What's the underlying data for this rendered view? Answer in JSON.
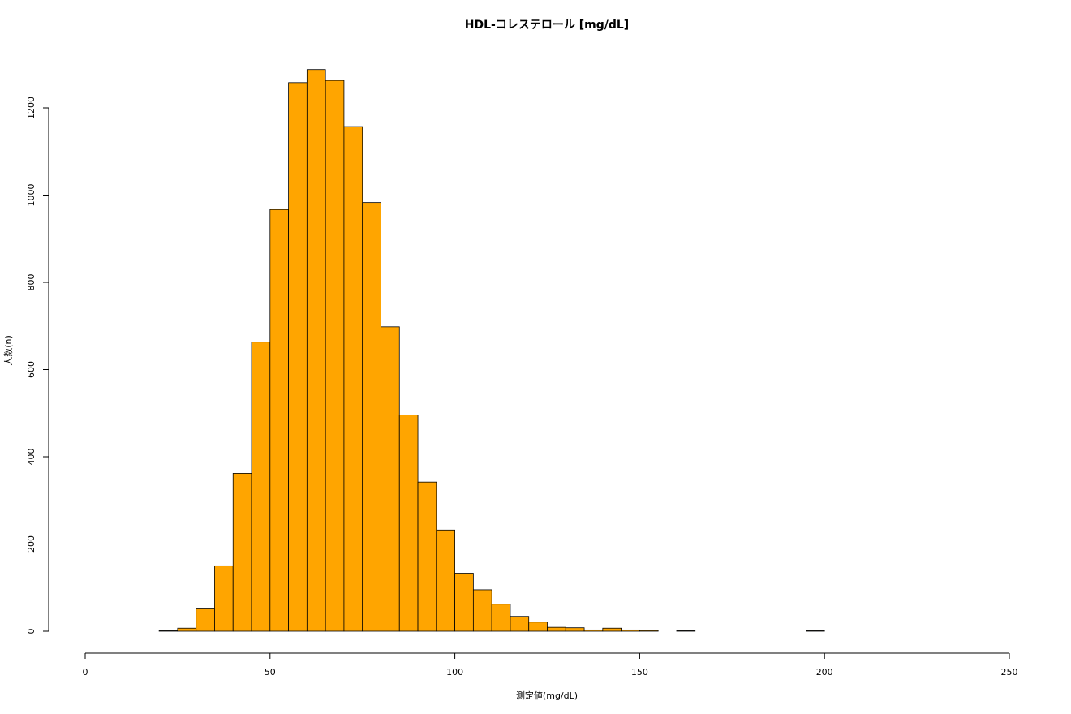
{
  "chart_data": {
    "type": "bar",
    "title": "HDL-コレステロール [mg/dL]",
    "xlabel": "測定値(mg/dL)",
    "ylabel": "人数(n)",
    "xlim": [
      0,
      250
    ],
    "ylim": [
      0,
      1200
    ],
    "x_ticks": [
      "0",
      "50",
      "100",
      "150",
      "200",
      "250"
    ],
    "y_ticks": [
      "0",
      "200",
      "400",
      "600",
      "800",
      "1000",
      "1200"
    ],
    "bar_color": "#FFA500",
    "bin_width": 5,
    "bins_start": [
      20,
      25,
      30,
      35,
      40,
      45,
      50,
      55,
      60,
      65,
      70,
      75,
      80,
      85,
      90,
      95,
      100,
      105,
      110,
      115,
      120,
      125,
      130,
      135,
      140,
      145,
      150,
      155,
      160,
      165,
      170,
      175,
      180,
      185,
      190,
      195
    ],
    "values": [
      1,
      7,
      53,
      150,
      362,
      663,
      967,
      1258,
      1288,
      1263,
      1157,
      983,
      698,
      496,
      342,
      232,
      133,
      95,
      62,
      34,
      21,
      9,
      8,
      3,
      7,
      3,
      2,
      0,
      1,
      0,
      0,
      0,
      0,
      0,
      0,
      1
    ]
  }
}
